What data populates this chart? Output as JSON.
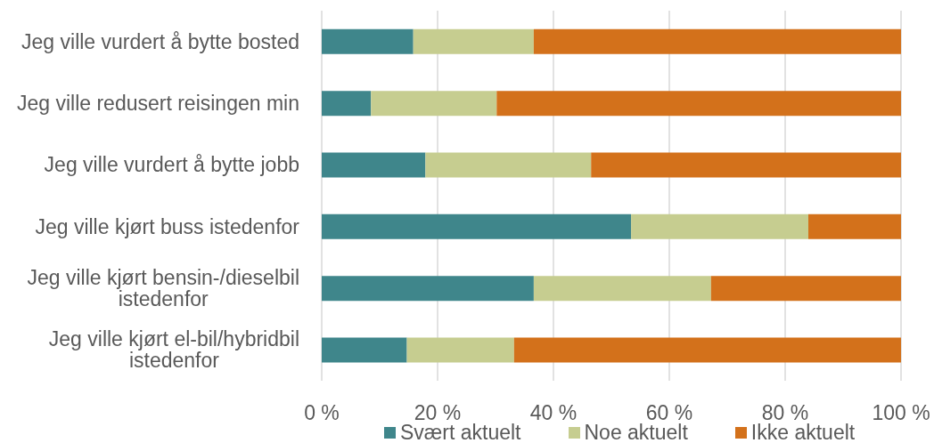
{
  "chart_data": {
    "type": "bar",
    "orientation": "horizontal",
    "stacked": true,
    "categories": [
      "Jeg ville vurdert å bytte bosted",
      "Jeg ville redusert reisingen min",
      "Jeg ville vurdert å bytte jobb",
      "Jeg ville kjørt buss istedenfor",
      "Jeg ville kjørt bensin-/dieselbil istedenfor",
      "Jeg ville kjørt el-bil/hybridbil istedenfor"
    ],
    "series": [
      {
        "name": "Svært aktuelt",
        "color": "#3f868b",
        "values": [
          15.8,
          8.5,
          17.9,
          53.4,
          36.6,
          14.7
        ]
      },
      {
        "name": "Noe aktuelt",
        "color": "#c6cd90",
        "values": [
          20.8,
          21.7,
          28.6,
          30.6,
          30.6,
          18.5
        ]
      },
      {
        "name": "Ikke aktuelt",
        "color": "#d3711b",
        "values": [
          63.4,
          69.8,
          53.5,
          16.0,
          32.8,
          66.8
        ]
      }
    ],
    "xlim": [
      0,
      100
    ],
    "xticks": [
      {
        "value": 0,
        "label": "0 %"
      },
      {
        "value": 20,
        "label": "20 %"
      },
      {
        "value": 40,
        "label": "40 %"
      },
      {
        "value": 60,
        "label": "60 %"
      },
      {
        "value": 80,
        "label": "80 %"
      },
      {
        "value": 100,
        "label": "100 %"
      }
    ],
    "grid": "x",
    "legend": "bottom"
  }
}
